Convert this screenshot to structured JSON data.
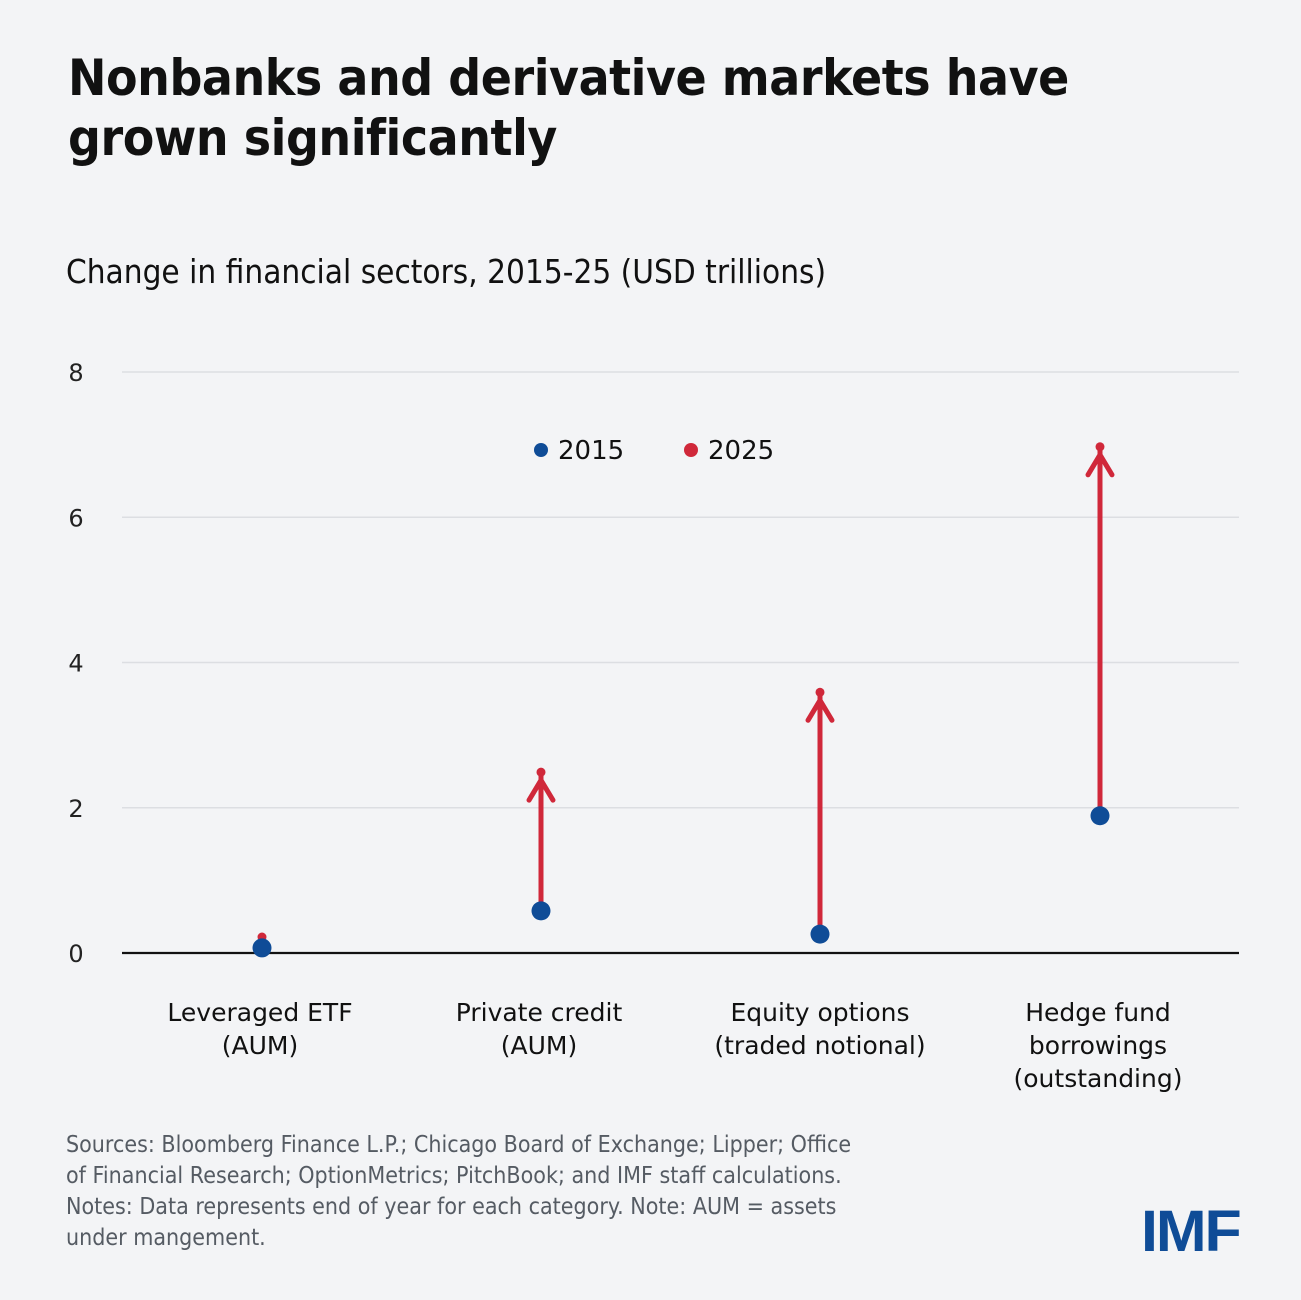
{
  "header": {
    "title": "Nonbanks and derivative markets have grown significantly",
    "subtitle": "Change in financial sectors, 2015-25 (USD trillions)"
  },
  "colors": {
    "background": "#f3f4f6",
    "series_2015": "#0f4c97",
    "series_2025": "#d0283a",
    "gridline": "#dcdee2",
    "axis": "#111111",
    "notes_text": "#555b63",
    "logo": "#0f4c97"
  },
  "chart_data": {
    "type": "scatter",
    "title": "Change in financial sectors, 2015-25 (USD trillions)",
    "xlabel": "",
    "ylabel": "USD trillions",
    "ylim": [
      0,
      8
    ],
    "yticks": [
      0,
      2,
      4,
      6,
      8
    ],
    "grid": true,
    "legend_position": "top-center",
    "categories": [
      [
        "Leveraged ETF",
        "(AUM)"
      ],
      [
        "Private credit",
        "(AUM)"
      ],
      [
        "Equity options",
        "(traded notional)"
      ],
      [
        "Hedge fund",
        "borrowings",
        "(outstanding)"
      ]
    ],
    "series": [
      {
        "name": "2015",
        "values": [
          0.07,
          0.58,
          0.26,
          1.89
        ]
      },
      {
        "name": "2025",
        "values": [
          0.22,
          2.49,
          3.59,
          6.97
        ]
      }
    ],
    "annotations": "Arrows from 2015 value up to 2025 value for each category"
  },
  "footer": {
    "notes_lines": [
      "Sources: Bloomberg Finance L.P.; Chicago Board of Exchange; Lipper; Office",
      "of Financial Research; OptionMetrics; PitchBook; and IMF staff calculations.",
      "Notes: Data represents end of year for each category. Note: AUM = assets",
      "under mangement."
    ],
    "logo_text": "IMF"
  }
}
